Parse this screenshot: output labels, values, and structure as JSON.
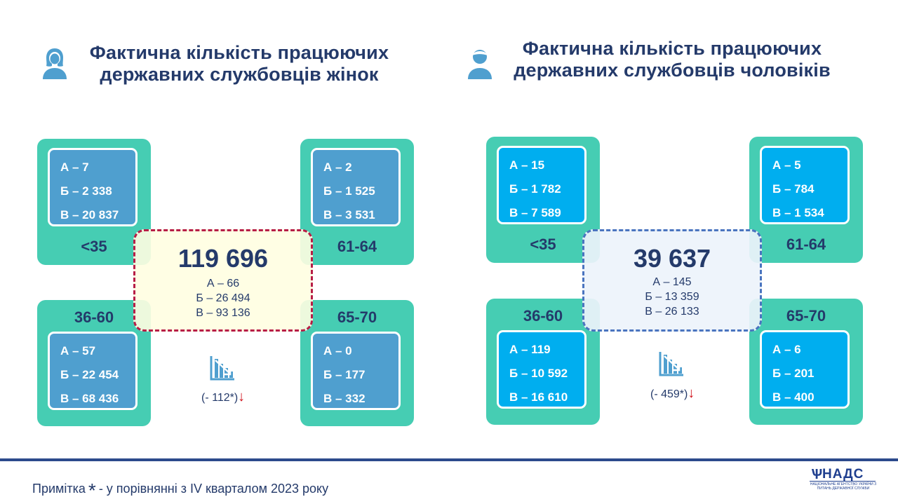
{
  "women": {
    "title_line1": "Фактична кількість працюючих",
    "title_line2": "державних службовців жінок",
    "icon": "woman-icon",
    "groups": {
      "under35": {
        "age": "<35",
        "a": "А – 7",
        "b": "Б – 2 338",
        "v": "В – 20 837"
      },
      "g61_64": {
        "age": "61-64",
        "a": "А – 2",
        "b": "Б – 1 525",
        "v": "В – 3 531"
      },
      "g36_60": {
        "age": "36-60",
        "a": "А – 57",
        "b": "Б – 22 454",
        "v": "В – 68 436"
      },
      "g65_70": {
        "age": "65-70",
        "a": "А – 0",
        "b": "Б – 177",
        "v": "В – 332"
      }
    },
    "total": {
      "value": "119 696",
      "a": "А – 66",
      "b": "Б – 26 494",
      "v": "В – 93 136"
    },
    "change": {
      "text": "(- 112*)",
      "arrow": "↓",
      "icon": "decreasing-chart-icon"
    }
  },
  "men": {
    "title_line1": "Фактична кількість працюючих",
    "title_line2": "державних службовців чоловіків",
    "icon": "man-icon",
    "groups": {
      "under35": {
        "age": "<35",
        "a": "А – 15",
        "b": "Б – 1 782",
        "v": "В – 7 589"
      },
      "g61_64": {
        "age": "61-64",
        "a": "А – 5",
        "b": "Б – 784",
        "v": "В – 1 534"
      },
      "g36_60": {
        "age": "36-60",
        "a": "А – 119",
        "b": "Б – 10 592",
        "v": "В – 16 610"
      },
      "g65_70": {
        "age": "65-70",
        "a": "А – 6",
        "b": "Б – 201",
        "v": "В – 400"
      }
    },
    "total": {
      "value": "39 637",
      "a": "А – 145",
      "b": "Б – 13 359",
      "v": "В – 26 133"
    },
    "change": {
      "text": "(- 459*)",
      "arrow": "↓",
      "icon": "decreasing-chart-icon"
    }
  },
  "footer": {
    "note_prefix": "Примітка",
    "note_star": "*",
    "note_text": "- у порівнянні з IV кварталом 2023 року",
    "logo_text": "НАДС",
    "logo_subtitle": "НАЦІОНАЛЬНЕ АГЕНТСТВО УКРАЇНИ З ПИТАНЬ ДЕРЖАВНОЇ СЛУЖБИ"
  },
  "colors": {
    "teal": "#46cdb3",
    "women_card": "#4f9fcf",
    "men_card": "#00aeef",
    "navy_text": "#243a6a",
    "women_dash": "#b71d46",
    "men_dash": "#4a74bf",
    "down_arrow": "#d0121b"
  }
}
